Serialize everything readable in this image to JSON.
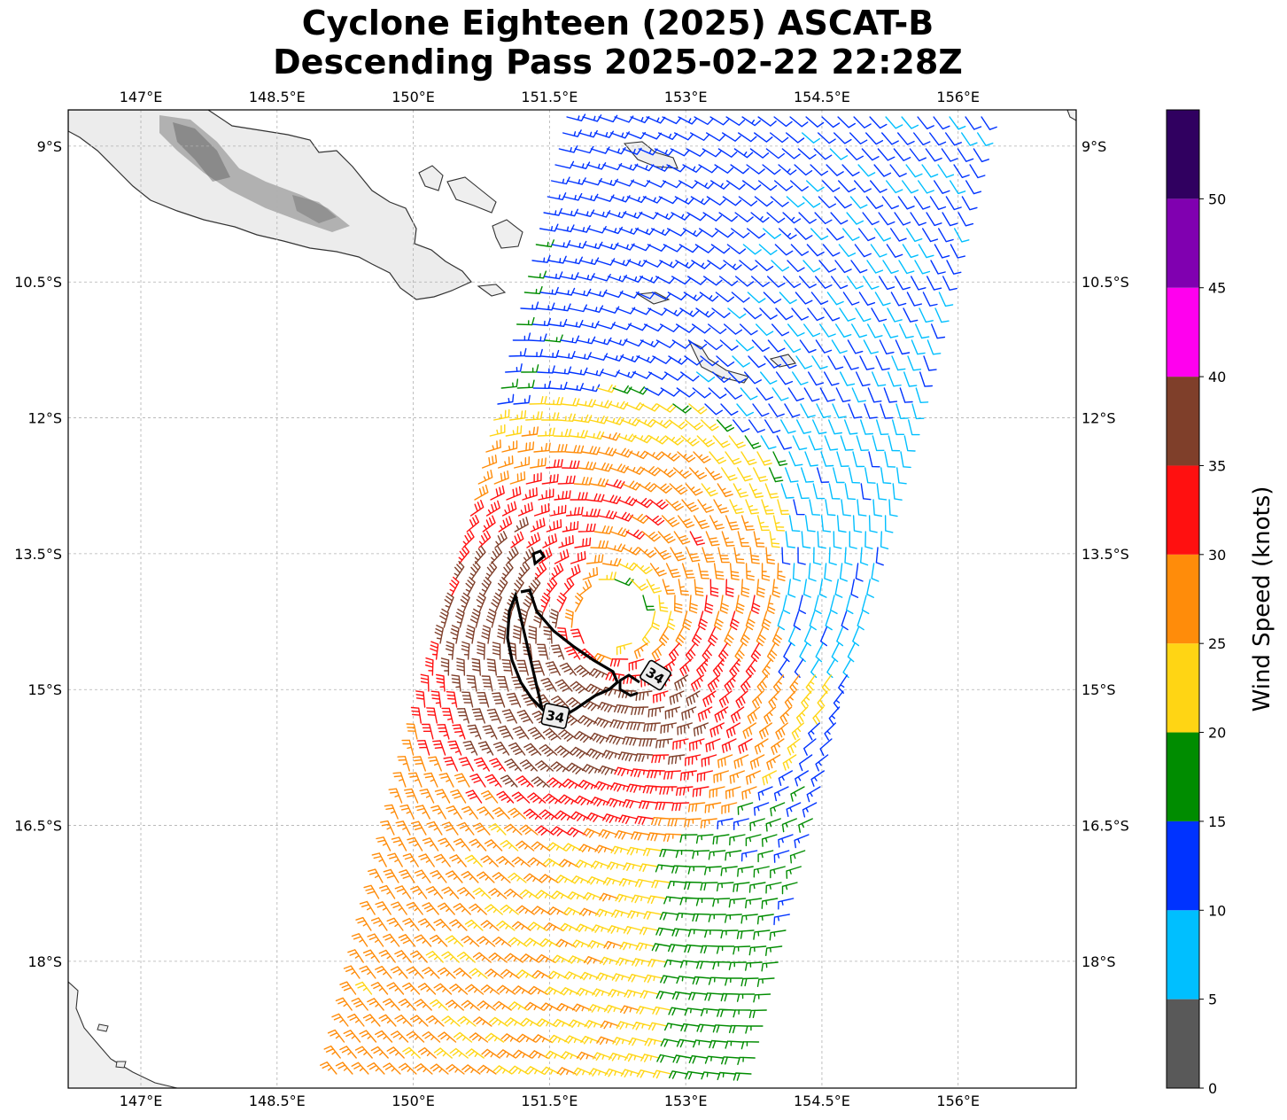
{
  "title": {
    "line1": "Cyclone Eighteen (2025) ASCAT-B",
    "line2": "Descending Pass 2025-02-22 22:28Z"
  },
  "map": {
    "lon_range": [
      146.2,
      157.3
    ],
    "lat_range": [
      -8.6,
      -19.4
    ],
    "lon_ticks": [
      "147°E",
      "148.5°E",
      "150°E",
      "151.5°E",
      "153°E",
      "154.5°E",
      "156°E"
    ],
    "lon_tick_values": [
      147,
      148.5,
      150,
      151.5,
      153,
      154.5,
      156
    ],
    "lat_ticks": [
      "9°S",
      "10.5°S",
      "12°S",
      "13.5°S",
      "15°S",
      "16.5°S",
      "18°S"
    ],
    "lat_tick_values": [
      -9,
      -10.5,
      -12,
      -13.5,
      -15,
      -16.5,
      -18
    ],
    "gridlines": true,
    "storm_center": {
      "lon": 152.2,
      "lat": -14.2
    },
    "contour_value_label": "34"
  },
  "colorbar": {
    "label": "Wind Speed (knots)",
    "tick_labels": [
      "0",
      "5",
      "10",
      "15",
      "20",
      "25",
      "30",
      "35",
      "40",
      "45",
      "50"
    ],
    "bins": [
      {
        "min": 0,
        "max": 5,
        "color": "#595959"
      },
      {
        "min": 5,
        "max": 10,
        "color": "#00bfff"
      },
      {
        "min": 10,
        "max": 15,
        "color": "#0033ff"
      },
      {
        "min": 15,
        "max": 20,
        "color": "#008c00"
      },
      {
        "min": 20,
        "max": 25,
        "color": "#ffd514"
      },
      {
        "min": 25,
        "max": 30,
        "color": "#ff8c0a"
      },
      {
        "min": 30,
        "max": 35,
        "color": "#ff1010"
      },
      {
        "min": 35,
        "max": 40,
        "color": "#7f3f2a"
      },
      {
        "min": 40,
        "max": 45,
        "color": "#ff00ee"
      },
      {
        "min": 45,
        "max": 50,
        "color": "#8000b0"
      },
      {
        "min": 50,
        "max": 55,
        "color": "#300060"
      }
    ]
  }
}
